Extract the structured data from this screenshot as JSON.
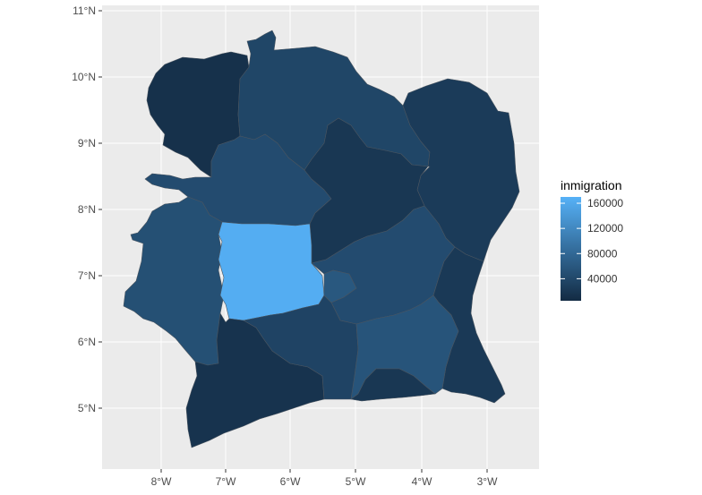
{
  "map": {
    "legend": {
      "title": "inmigration",
      "breaks": [
        {
          "label": "160000",
          "value": 160000
        },
        {
          "label": "120000",
          "value": 120000
        },
        {
          "label": "80000",
          "value": 80000
        },
        {
          "label": "40000",
          "value": 40000
        }
      ],
      "color_low": "#132b43",
      "color_high": "#56b1f7"
    },
    "x_ticks": [
      "8°W",
      "7°W",
      "6°W",
      "5°W",
      "4°W",
      "3°W"
    ],
    "y_ticks": [
      "11°N",
      "10°N",
      "9°N",
      "8°N",
      "7°N",
      "6°N",
      "5°N"
    ],
    "panel_background": "#ebebeb",
    "grid_color": "#ffffff",
    "regions": [
      {
        "id": "northwest",
        "value": 12000
      },
      {
        "id": "north",
        "value": 38000
      },
      {
        "id": "northeast",
        "value": 25000
      },
      {
        "id": "west-upper",
        "value": 45000
      },
      {
        "id": "center-north",
        "value": 20000
      },
      {
        "id": "west",
        "value": 50000
      },
      {
        "id": "center-west",
        "value": 165000
      },
      {
        "id": "center-east",
        "value": 45000
      },
      {
        "id": "east",
        "value": 22000
      },
      {
        "id": "southwest",
        "value": 15000
      },
      {
        "id": "south-center",
        "value": 35000
      },
      {
        "id": "southeast",
        "value": 55000
      },
      {
        "id": "far-southeast",
        "value": 20000
      },
      {
        "id": "yamoussoukro",
        "value": 60000
      },
      {
        "id": "abidjan",
        "value": 60000
      }
    ]
  }
}
